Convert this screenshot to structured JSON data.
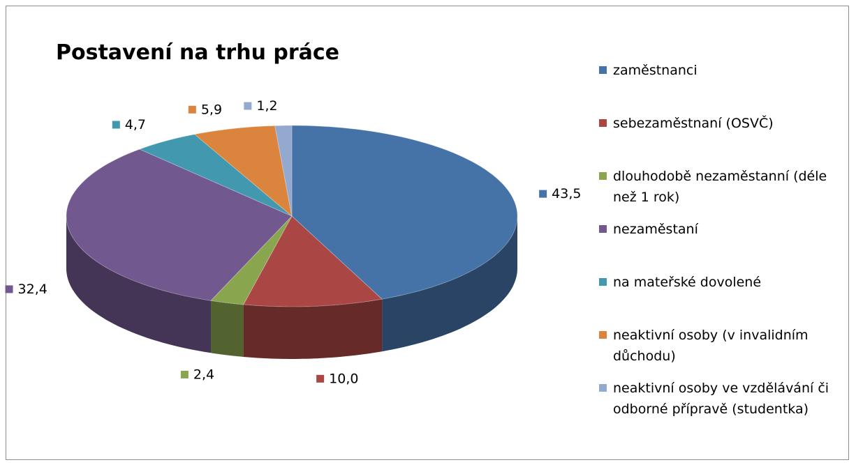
{
  "chart_data": {
    "type": "pie3d",
    "title": "Postavení na trhu práce",
    "categories": [
      "zaměstnanci",
      "sebezaměstnaní (OSVČ)",
      "dlouhodobě nezaměstanní (déle než 1 rok)",
      "nezaměstaní",
      "na mateřské dovolené",
      "neaktivní osoby (v invalidním důchodu)",
      "neaktivní osoby ve vzdělávání či odborné přípravě (studentka)"
    ],
    "values": [
      43.5,
      10.0,
      2.4,
      32.4,
      4.7,
      5.9,
      1.2
    ],
    "value_labels": [
      "43,5",
      "10,0",
      "2,4",
      "32,4",
      "4,7",
      "5,9",
      "1,2"
    ],
    "colors": [
      "#4572a7",
      "#aa4643",
      "#89a54e",
      "#71588f",
      "#4198af",
      "#db843d",
      "#93a9cf"
    ],
    "legend": "right"
  }
}
